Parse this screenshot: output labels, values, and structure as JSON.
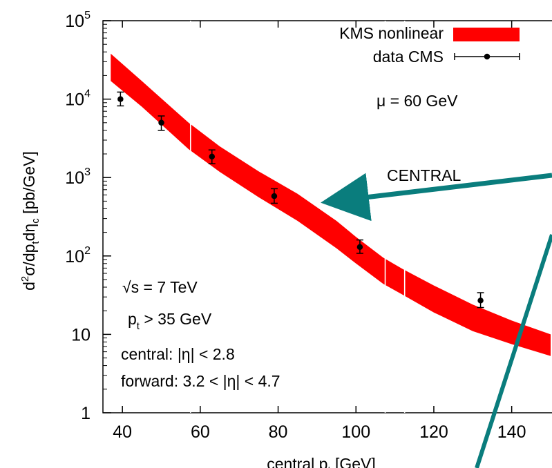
{
  "chart_data": {
    "type": "line",
    "xlabel": "central p",
    "xlabel_sub": "t",
    "xlabel_unit": "[GeV]",
    "ylabel_parts": {
      "d": "d",
      "exp2": "2",
      "mid": "σ/dp",
      "sub_t": "t",
      "d2": "dη",
      "sub_c": "c",
      "unit": " [pb/GeV]"
    },
    "xlim": [
      35,
      150
    ],
    "ylim": [
      1,
      100000
    ],
    "yscale": "log",
    "x_ticks": [
      {
        "value": 40,
        "label": "40"
      },
      {
        "value": 60,
        "label": "60"
      },
      {
        "value": 80,
        "label": "80"
      },
      {
        "value": 100,
        "label": "100"
      },
      {
        "value": 120,
        "label": "120"
      },
      {
        "value": 140,
        "label": "140"
      }
    ],
    "y_ticks": [
      {
        "value": 1,
        "base": "1",
        "exp": ""
      },
      {
        "value": 10,
        "base": "10",
        "exp": ""
      },
      {
        "value": 100,
        "base": "10",
        "exp": "2"
      },
      {
        "value": 1000,
        "base": "10",
        "exp": "3"
      },
      {
        "value": 10000,
        "base": "10",
        "exp": "4"
      },
      {
        "value": 100000,
        "base": "10",
        "exp": "5"
      }
    ],
    "series": [
      {
        "name": "KMS nonlinear",
        "kind": "band",
        "color": "#ff0000",
        "x": [
          37,
          45,
          57,
          65,
          75,
          85,
          95,
          100,
          107,
          112,
          120,
          130,
          140,
          150
        ],
        "upper": [
          38000,
          17000,
          5000,
          2500,
          1200,
          620,
          280,
          175,
          95,
          68,
          42,
          24,
          15,
          10
        ],
        "lower": [
          17000,
          8000,
          2300,
          1180,
          560,
          280,
          125,
          80,
          44,
          32,
          19,
          11,
          7.5,
          5.3
        ],
        "gaps_x": [
          57.5,
          107.5,
          112.5
        ]
      },
      {
        "name": "data CMS",
        "kind": "points",
        "color": "#000000",
        "x": [
          39.5,
          50,
          63,
          79,
          101,
          132
        ],
        "y": [
          10000,
          5000,
          1850,
          580,
          130,
          27
        ],
        "y_low": [
          8200,
          4000,
          1500,
          470,
          108,
          22
        ],
        "y_high": [
          12300,
          6100,
          2250,
          720,
          160,
          34
        ]
      }
    ],
    "legend": {
      "placement": "top-right",
      "entries": [
        "KMS nonlinear",
        "data CMS"
      ]
    },
    "annotations": {
      "mu": "μ = 60 GeV",
      "central_label": "CENTRAL",
      "sqrt_s": "√s = 7 TeV",
      "pt_line_pre": "p",
      "pt_line_sub": "t",
      "pt_line_post": " > 35 GeV",
      "central_cut": "central: |η| < 2.8",
      "forward_cut": "forward: 3.2 < |η| < 4.7"
    },
    "arrow_color": "#0a7d7d"
  }
}
